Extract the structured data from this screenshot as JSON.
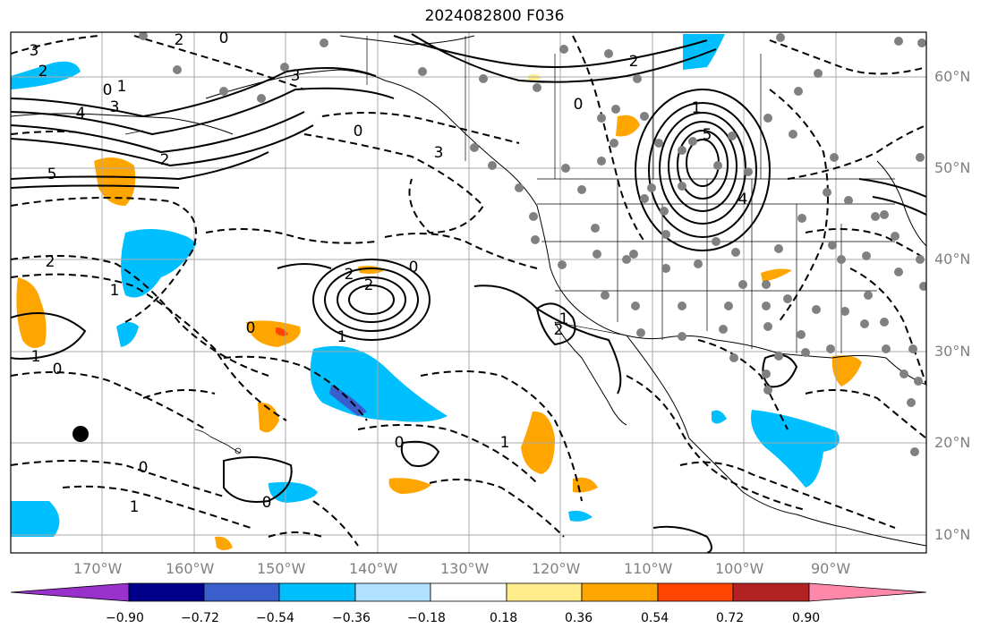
{
  "title": "2024082800 F036",
  "lat_labels": [
    "60°N",
    "50°N",
    "40°N",
    "30°N",
    "20°N",
    "10°N"
  ],
  "lon_labels": [
    "170°W",
    "160°W",
    "150°W",
    "140°W",
    "130°W",
    "120°W",
    "110°W",
    "100°W",
    "90°W"
  ],
  "colorbar": {
    "ticks": [
      "−0.90",
      "−0.72",
      "−0.54",
      "−0.36",
      "−0.18",
      "0.18",
      "0.36",
      "0.54",
      "0.72",
      "0.90"
    ],
    "colors": [
      "#9932cc",
      "#00008b",
      "#3a5fcd",
      "#00bfff",
      "#b0e2ff",
      "#ffffff",
      "#ffec8b",
      "#ffa500",
      "#ff4500",
      "#b22222",
      "#ff88aa"
    ]
  },
  "colors": {
    "land_line": "#000000",
    "grid": "#a9a9a9",
    "station_dot": "#808080"
  },
  "contour_labels": [
    "3",
    "2",
    "0",
    "1",
    "4",
    "3",
    "5",
    "2",
    "2",
    "0",
    "3",
    "5",
    "4",
    "2",
    "1",
    "2",
    "0",
    "1",
    "0",
    "2",
    "2",
    "1",
    "0",
    "0",
    "3",
    "0",
    "1",
    "2",
    "1",
    "0",
    "0",
    "0",
    "1",
    "1"
  ]
}
